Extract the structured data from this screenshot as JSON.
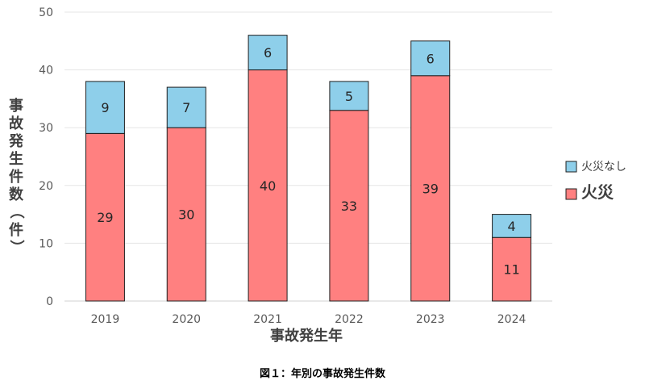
{
  "chart_data": {
    "type": "bar",
    "stacked": true,
    "categories": [
      "2019",
      "2020",
      "2021",
      "2022",
      "2023",
      "2024"
    ],
    "series": [
      {
        "name": "火災",
        "values": [
          29,
          30,
          40,
          33,
          39,
          11
        ],
        "color": "#ff8080"
      },
      {
        "name": "火災なし",
        "values": [
          9,
          7,
          6,
          5,
          6,
          4
        ],
        "color": "#8ecfea"
      }
    ],
    "xlabel": "事故発生年",
    "ylabel": "事故発生件数（件）",
    "ylim": [
      0,
      50
    ],
    "yticks": [
      0,
      10,
      20,
      30,
      40,
      50
    ],
    "grid": true,
    "legend_position": "right",
    "caption": "図１：年別の事故発生件数"
  }
}
